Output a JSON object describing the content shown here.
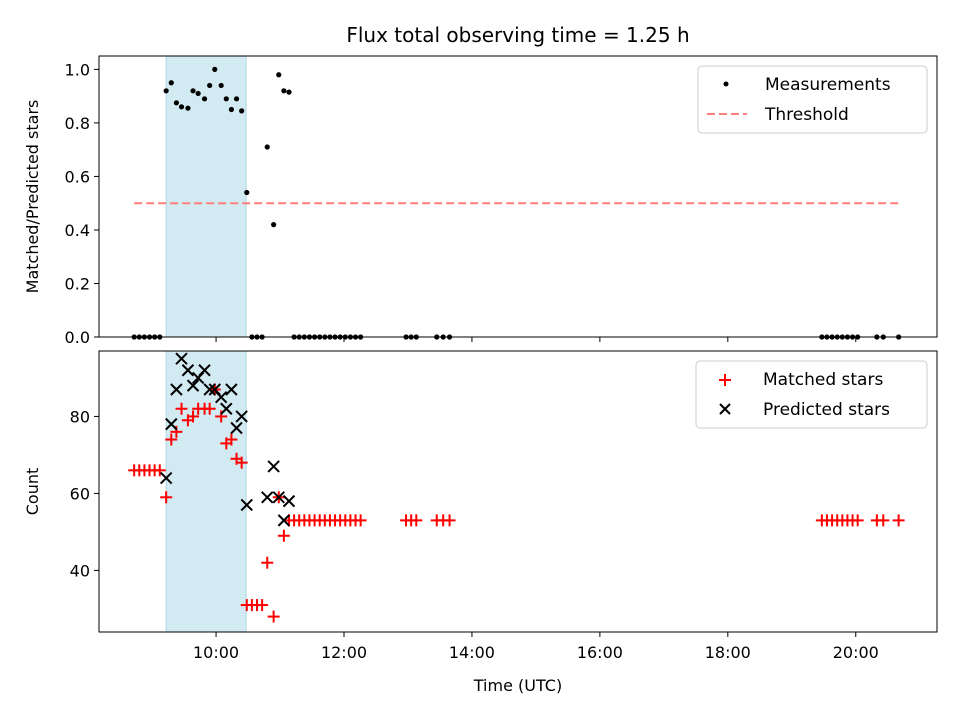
{
  "title": "Flux total observing time = 1.25 h",
  "xlabel": "Time (UTC)",
  "colors": {
    "shade": "#add8e6",
    "measurements": "#000000",
    "threshold": "#ff7f7f",
    "matched": "#ff0000",
    "predicted": "#000000"
  },
  "chart_data": [
    {
      "type": "scatter",
      "ylabel": "Matched/Predicted stars",
      "x_ticks": [],
      "ylim": [
        0,
        1.05
      ],
      "xlim": [
        8.17,
        21.27
      ],
      "y_ticks": [
        0.0,
        0.2,
        0.4,
        0.6,
        0.8,
        1.0
      ],
      "y_tick_labels": [
        "0.0",
        "0.2",
        "0.4",
        "0.6",
        "0.8",
        "1.0"
      ],
      "highlight_span": [
        9.22,
        10.47
      ],
      "legend_position": "top-right",
      "series": [
        {
          "name": "Measurements",
          "kind": "dots",
          "points": [
            [
              8.72,
              0
            ],
            [
              8.8,
              0
            ],
            [
              8.88,
              0
            ],
            [
              8.96,
              0
            ],
            [
              9.04,
              0
            ],
            [
              9.12,
              0
            ],
            [
              9.22,
              0.92
            ],
            [
              9.3,
              0.95
            ],
            [
              9.38,
              0.875
            ],
            [
              9.46,
              0.86
            ],
            [
              9.56,
              0.855
            ],
            [
              9.64,
              0.92
            ],
            [
              9.72,
              0.91
            ],
            [
              9.82,
              0.89
            ],
            [
              9.9,
              0.94
            ],
            [
              9.98,
              1.0
            ],
            [
              10.08,
              0.94
            ],
            [
              10.16,
              0.89
            ],
            [
              10.24,
              0.85
            ],
            [
              10.32,
              0.89
            ],
            [
              10.4,
              0.845
            ],
            [
              10.48,
              0.54
            ],
            [
              10.56,
              0
            ],
            [
              10.64,
              0
            ],
            [
              10.72,
              0
            ],
            [
              10.8,
              0.71
            ],
            [
              10.9,
              0.42
            ],
            [
              10.98,
              0.98
            ],
            [
              11.06,
              0.92
            ],
            [
              11.14,
              0.915
            ],
            [
              11.22,
              0
            ],
            [
              11.3,
              0
            ],
            [
              11.38,
              0
            ],
            [
              11.46,
              0
            ],
            [
              11.54,
              0
            ],
            [
              11.62,
              0
            ],
            [
              11.7,
              0
            ],
            [
              11.78,
              0
            ],
            [
              11.86,
              0
            ],
            [
              11.94,
              0
            ],
            [
              12.02,
              0
            ],
            [
              12.1,
              0
            ],
            [
              12.18,
              0
            ],
            [
              12.26,
              0
            ],
            [
              12.97,
              0
            ],
            [
              13.05,
              0
            ],
            [
              13.13,
              0
            ],
            [
              13.45,
              0
            ],
            [
              13.55,
              0
            ],
            [
              13.65,
              0
            ],
            [
              19.47,
              0
            ],
            [
              19.55,
              0
            ],
            [
              19.63,
              0
            ],
            [
              19.71,
              0
            ],
            [
              19.79,
              0
            ],
            [
              19.87,
              0
            ],
            [
              19.95,
              0
            ],
            [
              20.03,
              0
            ],
            [
              20.33,
              0
            ],
            [
              20.43,
              0
            ],
            [
              20.67,
              0
            ]
          ]
        },
        {
          "name": "Threshold",
          "kind": "dashed-line",
          "points": [
            [
              8.72,
              0.5
            ],
            [
              20.67,
              0.5
            ]
          ]
        }
      ]
    },
    {
      "type": "scatter",
      "ylabel": "Count",
      "xlim": [
        8.17,
        21.27
      ],
      "ylim": [
        24,
        97
      ],
      "y_ticks": [
        40,
        60,
        80
      ],
      "y_tick_labels": [
        "40",
        "60",
        "80"
      ],
      "x_ticks": [
        10,
        12,
        14,
        16,
        18,
        20
      ],
      "x_tick_labels": [
        "10:00",
        "12:00",
        "14:00",
        "16:00",
        "18:00",
        "20:00"
      ],
      "highlight_span": [
        9.22,
        10.47
      ],
      "legend_position": "top-right",
      "series": [
        {
          "name": "Matched stars",
          "kind": "plus",
          "points": [
            [
              8.72,
              66
            ],
            [
              8.8,
              66
            ],
            [
              8.88,
              66
            ],
            [
              8.96,
              66
            ],
            [
              9.04,
              66
            ],
            [
              9.12,
              66
            ],
            [
              9.22,
              59
            ],
            [
              9.3,
              74
            ],
            [
              9.38,
              76
            ],
            [
              9.46,
              82
            ],
            [
              9.56,
              79
            ],
            [
              9.64,
              80
            ],
            [
              9.72,
              82
            ],
            [
              9.82,
              82
            ],
            [
              9.9,
              82
            ],
            [
              9.98,
              87
            ],
            [
              10.08,
              80
            ],
            [
              10.16,
              73
            ],
            [
              10.24,
              74
            ],
            [
              10.32,
              69
            ],
            [
              10.4,
              68
            ],
            [
              10.48,
              31
            ],
            [
              10.56,
              31
            ],
            [
              10.64,
              31
            ],
            [
              10.72,
              31
            ],
            [
              10.8,
              42
            ],
            [
              10.9,
              28
            ],
            [
              10.98,
              59
            ],
            [
              11.06,
              49
            ],
            [
              11.14,
              53
            ],
            [
              11.22,
              53
            ],
            [
              11.3,
              53
            ],
            [
              11.38,
              53
            ],
            [
              11.46,
              53
            ],
            [
              11.54,
              53
            ],
            [
              11.62,
              53
            ],
            [
              11.7,
              53
            ],
            [
              11.78,
              53
            ],
            [
              11.86,
              53
            ],
            [
              11.94,
              53
            ],
            [
              12.02,
              53
            ],
            [
              12.1,
              53
            ],
            [
              12.18,
              53
            ],
            [
              12.26,
              53
            ],
            [
              12.97,
              53
            ],
            [
              13.05,
              53
            ],
            [
              13.13,
              53
            ],
            [
              13.45,
              53
            ],
            [
              13.55,
              53
            ],
            [
              13.65,
              53
            ],
            [
              19.47,
              53
            ],
            [
              19.55,
              53
            ],
            [
              19.63,
              53
            ],
            [
              19.71,
              53
            ],
            [
              19.79,
              53
            ],
            [
              19.87,
              53
            ],
            [
              19.95,
              53
            ],
            [
              20.03,
              53
            ],
            [
              20.33,
              53
            ],
            [
              20.43,
              53
            ],
            [
              20.67,
              53
            ]
          ]
        },
        {
          "name": "Predicted stars",
          "kind": "x",
          "points": [
            [
              9.22,
              64
            ],
            [
              9.3,
              78
            ],
            [
              9.38,
              87
            ],
            [
              9.46,
              95
            ],
            [
              9.56,
              92
            ],
            [
              9.64,
              88
            ],
            [
              9.72,
              90
            ],
            [
              9.82,
              92
            ],
            [
              9.9,
              87
            ],
            [
              9.98,
              87
            ],
            [
              10.08,
              85
            ],
            [
              10.16,
              82
            ],
            [
              10.24,
              87
            ],
            [
              10.32,
              77
            ],
            [
              10.4,
              80
            ],
            [
              10.48,
              57
            ],
            [
              10.8,
              59
            ],
            [
              10.9,
              67
            ],
            [
              10.98,
              59
            ],
            [
              11.06,
              53
            ],
            [
              11.14,
              58
            ]
          ]
        }
      ]
    }
  ]
}
